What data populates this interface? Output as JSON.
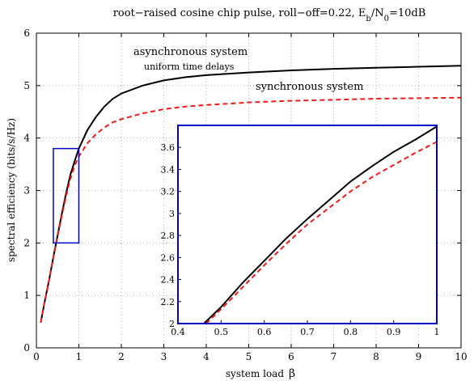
{
  "chart_data": {
    "type": "line",
    "title": "root−raised cosine chip pulse, roll−off=0.22, E",
    "title_sub1": "b",
    "title_mid": "/N",
    "title_sub2": "0",
    "title_end": "=10dB",
    "xlabel": "system load",
    "xlabel_symbol": "β",
    "ylabel": "spectral efficiency (bits/s/Hz)",
    "xlim": [
      0,
      10
    ],
    "ylim": [
      0,
      6
    ],
    "grid": true,
    "x_ticks": [
      "0",
      "1",
      "2",
      "3",
      "4",
      "5",
      "6",
      "7",
      "8",
      "9",
      "10"
    ],
    "y_ticks": [
      "0",
      "1",
      "2",
      "3",
      "4",
      "5",
      "6"
    ],
    "annotations": {
      "async_label": "asynchronous system",
      "async_sub": "uniform time delays",
      "sync_label": "synchronous system"
    },
    "series": [
      {
        "name": "asynchronous system",
        "color": "#000000",
        "dash": "solid",
        "x": [
          0.1,
          0.2,
          0.3,
          0.4,
          0.5,
          0.6,
          0.7,
          0.8,
          0.9,
          1.0,
          1.2,
          1.4,
          1.6,
          1.8,
          2.0,
          2.5,
          3.0,
          3.5,
          4.0,
          5.0,
          6.0,
          7.0,
          8.0,
          9.0,
          10.0
        ],
        "y": [
          0.48,
          0.9,
          1.3,
          1.73,
          2.15,
          2.56,
          2.95,
          3.3,
          3.56,
          3.8,
          4.15,
          4.4,
          4.6,
          4.75,
          4.85,
          5.0,
          5.1,
          5.16,
          5.2,
          5.25,
          5.29,
          5.32,
          5.34,
          5.36,
          5.38
        ]
      },
      {
        "name": "synchronous system",
        "color": "#ee1c1c",
        "dash": "dashed",
        "x": [
          0.1,
          0.2,
          0.3,
          0.4,
          0.5,
          0.6,
          0.7,
          0.8,
          0.9,
          1.0,
          1.2,
          1.4,
          1.6,
          1.8,
          2.0,
          2.5,
          3.0,
          3.5,
          4.0,
          5.0,
          6.0,
          7.0,
          8.0,
          9.0,
          10.0
        ],
        "y": [
          0.48,
          0.9,
          1.3,
          1.72,
          2.13,
          2.52,
          2.9,
          3.22,
          3.47,
          3.65,
          3.9,
          4.07,
          4.2,
          4.3,
          4.36,
          4.47,
          4.55,
          4.6,
          4.63,
          4.68,
          4.71,
          4.73,
          4.75,
          4.76,
          4.77
        ]
      }
    ],
    "zoom_box": {
      "x": [
        0.4,
        1.0
      ],
      "y": [
        2.0,
        3.8
      ],
      "color": "#0000cc"
    },
    "inset": {
      "xlim": [
        0.4,
        1.0
      ],
      "ylim": [
        2.0,
        3.8
      ],
      "x_ticks": [
        "0.4",
        "0.5",
        "0.6",
        "0.7",
        "0.8",
        "0.9",
        "1"
      ],
      "y_ticks": [
        "2",
        "2.2",
        "2.4",
        "2.6",
        "2.8",
        "3",
        "3.2",
        "3.4",
        "3.6"
      ],
      "border_color": "#0000cc",
      "series": [
        {
          "name": "asynchronous system",
          "x": [
            0.46,
            0.5,
            0.55,
            0.6,
            0.65,
            0.7,
            0.75,
            0.8,
            0.85,
            0.9,
            0.95,
            1.0
          ],
          "y": [
            2.0,
            2.15,
            2.37,
            2.57,
            2.77,
            2.95,
            3.12,
            3.29,
            3.43,
            3.56,
            3.67,
            3.79
          ]
        },
        {
          "name": "synchronous system",
          "x": [
            0.465,
            0.5,
            0.55,
            0.6,
            0.65,
            0.7,
            0.75,
            0.8,
            0.85,
            0.9,
            0.95,
            1.0
          ],
          "y": [
            2.0,
            2.13,
            2.33,
            2.53,
            2.72,
            2.9,
            3.05,
            3.2,
            3.33,
            3.44,
            3.55,
            3.65
          ]
        }
      ]
    }
  }
}
